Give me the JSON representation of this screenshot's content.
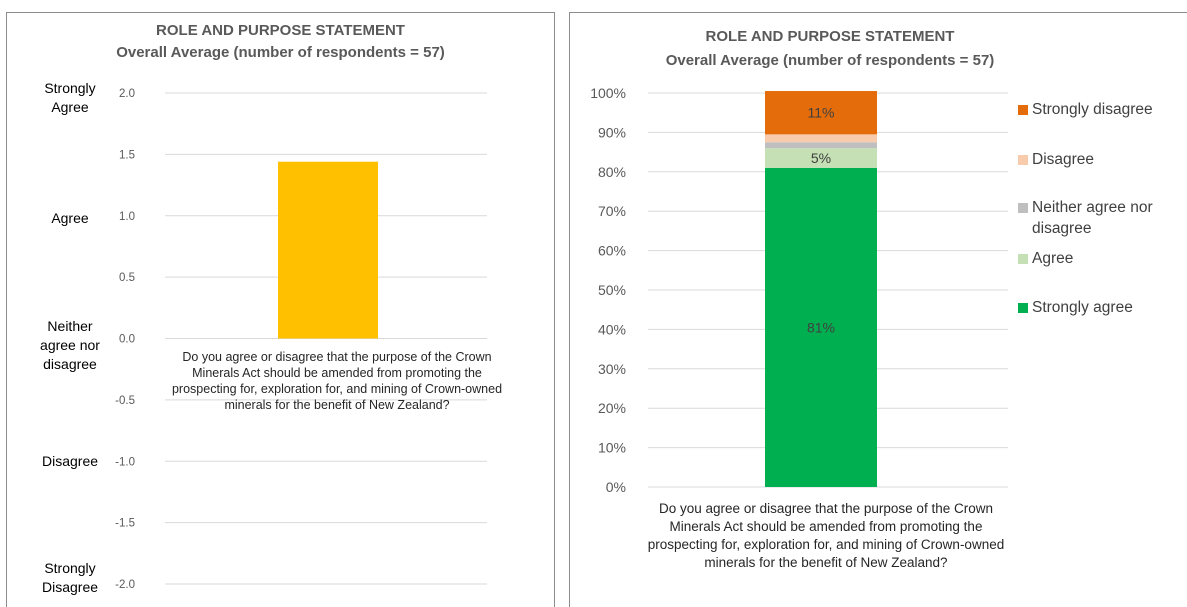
{
  "charts": [
    {
      "title": "ROLE AND PURPOSE STATEMENT",
      "subtitle": "Overall Average (number of respondents = 57)",
      "category": "Do you agree or disagree that the purpose of the Crown Minerals Act should be amended from promoting the prospecting for, exploration for, and mining of Crown-owned minerals for the benefit of New Zealand?",
      "scale_labels": [
        "Strongly Agree",
        "Agree",
        "Neither agree nor disagree",
        "Disagree",
        "Strongly Disagree"
      ],
      "colors": {
        "bar": "#FFC000",
        "grid": "#D9D9D9"
      }
    },
    {
      "title": "ROLE AND PURPOSE STATEMENT",
      "subtitle": "Overall Average (number of respondents = 57)",
      "category": "Do you agree or disagree that the purpose of the Crown Minerals Act should be amended from promoting the prospecting for, exploration for, and mining of Crown-owned minerals for the benefit of New Zealand?",
      "colors": {
        "grid": "#D9D9D9"
      }
    }
  ],
  "chart_data": [
    {
      "type": "bar",
      "categories": [
        "Do you agree or disagree that the purpose of the Crown Minerals Act should be amended from promoting the prospecting for, exploration for, and mining of Crown-owned minerals for the benefit of New Zealand?"
      ],
      "values": [
        1.44
      ],
      "ylim": [
        -2.0,
        2.0
      ],
      "yticks": [
        2.0,
        1.5,
        1.0,
        0.5,
        0.0,
        -0.5,
        -1.0,
        -1.5,
        -2.0
      ],
      "ytick_labels": [
        "2.0",
        "1.5",
        "1.0",
        "0.5",
        "0.0",
        "-0.5",
        "-1.0",
        "-1.5",
        "-2.0"
      ],
      "grid": true
    },
    {
      "type": "bar",
      "stacked": true,
      "categories": [
        "Do you agree or disagree that the purpose of the Crown Minerals Act should be amended from promoting the prospecting for, exploration for, and mining of Crown-owned minerals for the benefit of New Zealand?"
      ],
      "ylim": [
        0,
        100
      ],
      "ytick_labels": [
        "0%",
        "10%",
        "20%",
        "30%",
        "40%",
        "50%",
        "60%",
        "70%",
        "80%",
        "90%",
        "100%"
      ],
      "grid": true,
      "legend_position": "right",
      "series": [
        {
          "name": "Strongly agree",
          "values": [
            81
          ],
          "color": "#00B050",
          "label": "81%"
        },
        {
          "name": "Agree",
          "values": [
            5
          ],
          "color": "#C5E0B4",
          "label": "5%"
        },
        {
          "name": "Neither agree nor disagree",
          "values": [
            1.5
          ],
          "color": "#BFBFBF",
          "label": ""
        },
        {
          "name": "Disagree",
          "values": [
            2
          ],
          "color": "#F8CBAD",
          "label": ""
        },
        {
          "name": "Strongly disagree",
          "values": [
            11
          ],
          "color": "#E46C0A",
          "label": "11%"
        }
      ],
      "legend_order": [
        "Strongly disagree",
        "Disagree",
        "Neither agree nor disagree",
        "Agree",
        "Strongly agree"
      ],
      "legend_labels": {
        "Strongly disagree": "Strongly disagree",
        "Disagree": "Disagree",
        "Neither agree nor disagree": "Neither agree nor disagree",
        "Agree": "Agree",
        "Strongly agree": "Strongly agree"
      }
    }
  ]
}
